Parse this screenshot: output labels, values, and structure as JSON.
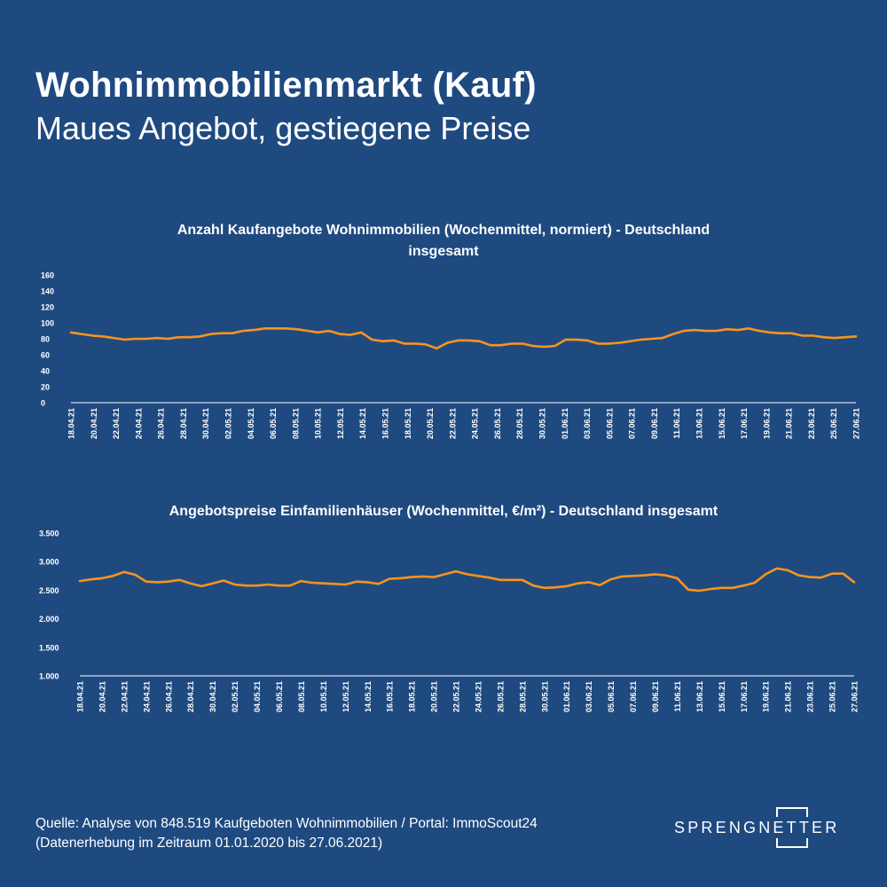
{
  "header": {
    "title": "Wohnimmobilienmarkt (Kauf)",
    "subtitle": "Maues Angebot, gestiegene Preise"
  },
  "chart_data": [
    {
      "type": "line",
      "title_line1": "Anzahl Kaufangebote Wohnimmobilien (Wochenmittel, normiert)  - Deutschland",
      "title_line2": "insgesamt",
      "ylim": [
        0,
        160
      ],
      "y_ticks": [
        "0",
        "20",
        "40",
        "60",
        "80",
        "100",
        "120",
        "140",
        "160"
      ],
      "x_tick_labels": [
        "18.04.21",
        "20.04.21",
        "22.04.21",
        "24.04.21",
        "26.04.21",
        "28.04.21",
        "30.04.21",
        "02.05.21",
        "04.05.21",
        "06.05.21",
        "08.05.21",
        "10.05.21",
        "12.05.21",
        "14.05.21",
        "16.05.21",
        "18.05.21",
        "20.05.21",
        "22.05.21",
        "24.05.21",
        "26.05.21",
        "28.05.21",
        "30.05.21",
        "01.06.21",
        "03.06.21",
        "05.06.21",
        "07.06.21",
        "09.06.21",
        "11.06.21",
        "13.06.21",
        "15.06.21",
        "17.06.21",
        "19.06.21",
        "21.06.21",
        "23.06.21",
        "25.06.21",
        "27.06.21"
      ],
      "color": "#f7941d",
      "values": [
        88,
        86,
        84,
        83,
        81,
        79,
        80,
        80,
        81,
        80,
        82,
        82,
        83,
        86,
        87,
        87,
        90,
        91,
        93,
        93,
        93,
        92,
        90,
        88,
        90,
        86,
        85,
        88,
        79,
        77,
        78,
        74,
        74,
        73,
        68,
        75,
        78,
        78,
        77,
        72,
        72,
        74,
        74,
        71,
        70,
        71,
        79,
        79,
        78,
        74,
        74,
        75,
        77,
        79,
        80,
        81,
        86,
        90,
        91,
        90,
        90,
        92,
        91,
        93,
        90,
        88,
        87,
        87,
        84,
        84,
        82,
        81,
        82,
        83
      ]
    },
    {
      "type": "line",
      "title_line1": "Angebotspreise Einfamilienhäuser (Wochenmittel, €/m²)  - Deutschland insgesamt",
      "ylim": [
        1000,
        3500
      ],
      "y_ticks": [
        "1.000",
        "1.500",
        "2.000",
        "2.500",
        "3.000",
        "3.500"
      ],
      "x_tick_labels": [
        "18.04.21",
        "20.04.21",
        "22.04.21",
        "24.04.21",
        "26.04.21",
        "28.04.21",
        "30.04.21",
        "02.05.21",
        "04.05.21",
        "06.05.21",
        "08.05.21",
        "10.05.21",
        "12.05.21",
        "14.05.21",
        "16.05.21",
        "18.05.21",
        "20.05.21",
        "22.05.21",
        "24.05.21",
        "26.05.21",
        "28.05.21",
        "30.05.21",
        "01.06.21",
        "03.06.21",
        "05.06.21",
        "07.06.21",
        "09.06.21",
        "11.06.21",
        "13.06.21",
        "15.06.21",
        "17.06.21",
        "19.06.21",
        "21.06.21",
        "23.06.21",
        "25.06.21",
        "27.06.21"
      ],
      "color": "#f7941d",
      "values": [
        2660,
        2690,
        2710,
        2750,
        2820,
        2770,
        2650,
        2640,
        2650,
        2680,
        2620,
        2570,
        2620,
        2670,
        2600,
        2580,
        2580,
        2600,
        2580,
        2580,
        2660,
        2630,
        2620,
        2610,
        2600,
        2650,
        2640,
        2610,
        2700,
        2710,
        2730,
        2740,
        2730,
        2780,
        2830,
        2780,
        2750,
        2720,
        2680,
        2680,
        2680,
        2580,
        2540,
        2550,
        2570,
        2620,
        2640,
        2590,
        2690,
        2740,
        2750,
        2760,
        2780,
        2760,
        2710,
        2510,
        2490,
        2520,
        2540,
        2540,
        2580,
        2630,
        2780,
        2880,
        2850,
        2760,
        2730,
        2720,
        2790,
        2790,
        2640
      ]
    }
  ],
  "footer": {
    "line1": "Quelle: Analyse von 848.519 Kaufgeboten Wohnimmobilien / Portal: ImmoScout24",
    "line2": "(Datenerhebung im Zeitraum  01.01.2020 bis  27.06.2021)"
  },
  "logo": {
    "text": "SPRENGNETTER"
  }
}
